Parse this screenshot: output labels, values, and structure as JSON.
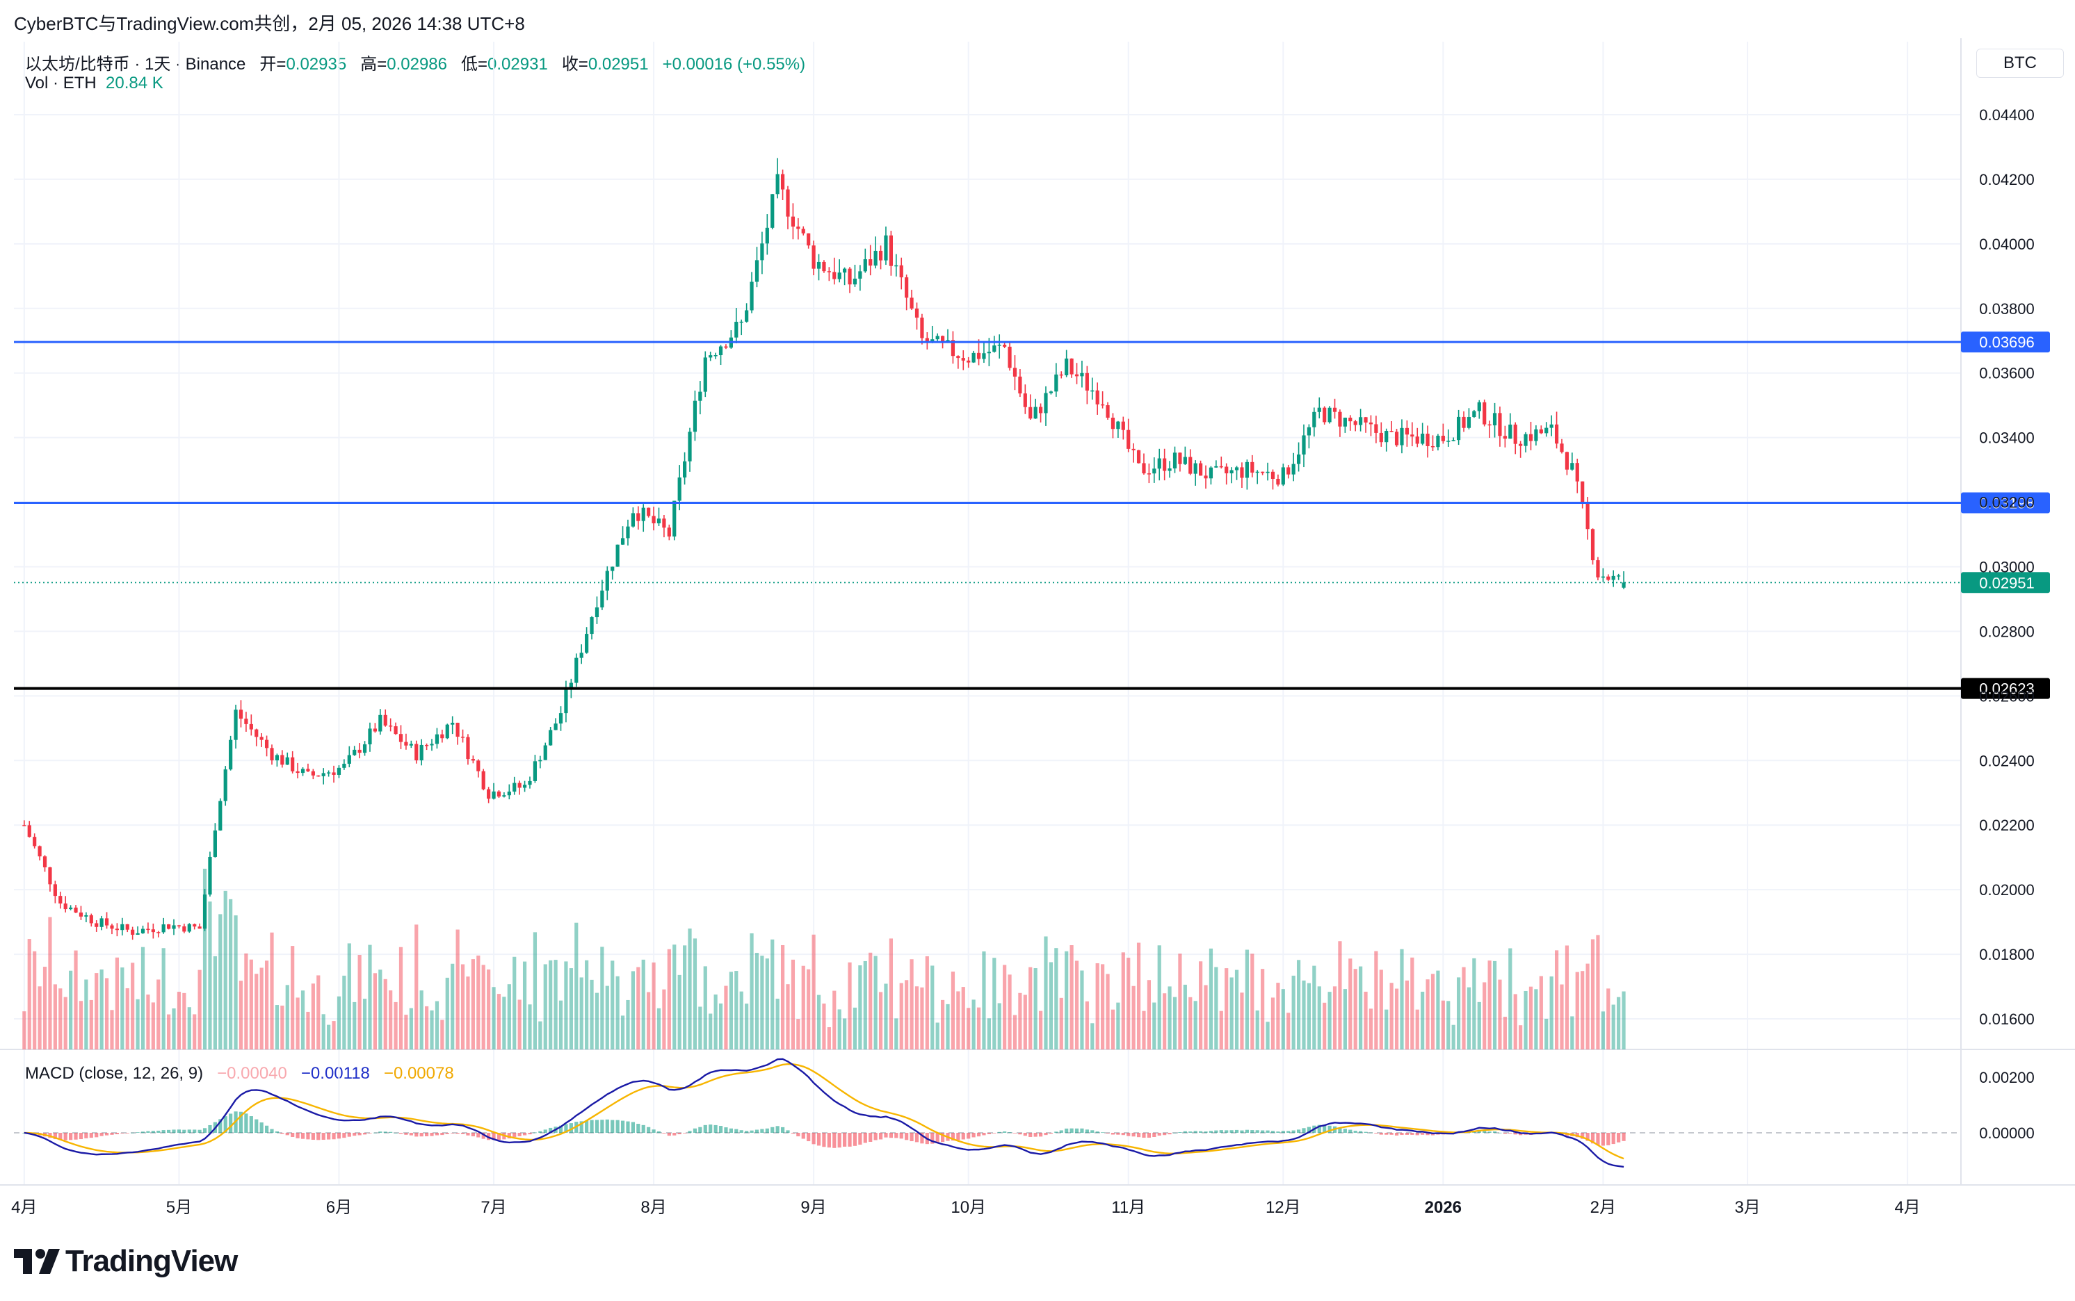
{
  "header": {
    "title": "CyberBTC与TradingView.com共创，2月 05, 2026 14:38 UTC+8"
  },
  "legend": {
    "symbol": "以太坊/比特币 · 1天 · Binance",
    "open_label": "开=",
    "open": "0.02935",
    "high_label": "高=",
    "high": "0.02986",
    "low_label": "低=",
    "low": "0.02931",
    "close_label": "收=",
    "close": "0.02951",
    "change": "+0.00016 (+0.55%)",
    "vol_label": "Vol · ETH",
    "vol": "20.84 K"
  },
  "macd_legend": {
    "label": "MACD (close, 12, 26, 9)",
    "hist": "−0.00040",
    "macd": "−0.00118",
    "signal": "−0.00078"
  },
  "currency_button": "BTC",
  "logo_text": "TradingView",
  "colors": {
    "up": "#089981",
    "down": "#f23645",
    "hline": "#2962ff",
    "support": "#000000",
    "macd": "#2962ff",
    "signal": "#f7b500"
  },
  "chart_data": {
    "type": "candlestick",
    "symbol": "ETH/BTC",
    "interval": "1D",
    "y_ticks": [
      "0.04400",
      "0.04200",
      "0.04000",
      "0.03800",
      "0.03600",
      "0.03400",
      "0.03200",
      "0.03000",
      "0.02800",
      "0.02600",
      "0.02400",
      "0.02200",
      "0.02000",
      "0.01800",
      "0.01600"
    ],
    "ylim": [
      0.0151,
      0.045
    ],
    "x_ticks": [
      "4月",
      "5月",
      "6月",
      "7月",
      "8月",
      "9月",
      "10月",
      "11月",
      "12月",
      "2026",
      "2月",
      "3月",
      "4月"
    ],
    "horizontal_lines": [
      {
        "value": 0.03696,
        "label": "0.03696",
        "color": "#2962ff"
      },
      {
        "value": 0.03198,
        "label": "0.03198",
        "color": "#2962ff"
      },
      {
        "value": 0.02623,
        "label": "0.02623",
        "color": "#000000"
      }
    ],
    "last_price": {
      "value": 0.02951,
      "label": "0.02951"
    },
    "close_series": [
      [
        "2025-04-01",
        0.022
      ],
      [
        "2025-04-08",
        0.0196
      ],
      [
        "2025-04-15",
        0.019
      ],
      [
        "2025-04-22",
        0.0187
      ],
      [
        "2025-04-29",
        0.0189
      ],
      [
        "2025-05-05",
        0.0188
      ],
      [
        "2025-05-08",
        0.022
      ],
      [
        "2025-05-12",
        0.0255
      ],
      [
        "2025-05-19",
        0.0242
      ],
      [
        "2025-05-26",
        0.0235
      ],
      [
        "2025-06-02",
        0.0238
      ],
      [
        "2025-06-09",
        0.0252
      ],
      [
        "2025-06-16",
        0.0242
      ],
      [
        "2025-06-23",
        0.0252
      ],
      [
        "2025-06-30",
        0.023
      ],
      [
        "2025-07-07",
        0.0232
      ],
      [
        "2025-07-14",
        0.0255
      ],
      [
        "2025-07-21",
        0.029
      ],
      [
        "2025-07-28",
        0.0318
      ],
      [
        "2025-08-04",
        0.031
      ],
      [
        "2025-08-11",
        0.0365
      ],
      [
        "2025-08-18",
        0.0375
      ],
      [
        "2025-08-25",
        0.0418
      ],
      [
        "2025-09-01",
        0.0395
      ],
      [
        "2025-09-08",
        0.0388
      ],
      [
        "2025-09-15",
        0.04
      ],
      [
        "2025-09-22",
        0.037
      ],
      [
        "2025-10-01",
        0.0365
      ],
      [
        "2025-10-08",
        0.0368
      ],
      [
        "2025-10-13",
        0.0345
      ],
      [
        "2025-10-20",
        0.0362
      ],
      [
        "2025-10-27",
        0.0352
      ],
      [
        "2025-11-03",
        0.033
      ],
      [
        "2025-11-10",
        0.0333
      ],
      [
        "2025-11-17",
        0.0328
      ],
      [
        "2025-11-24",
        0.033
      ],
      [
        "2025-12-01",
        0.0328
      ],
      [
        "2025-12-08",
        0.0348
      ],
      [
        "2025-12-15",
        0.0344
      ],
      [
        "2025-12-22",
        0.034
      ],
      [
        "2026-01-01",
        0.034
      ],
      [
        "2026-01-08",
        0.0348
      ],
      [
        "2026-01-15",
        0.034
      ],
      [
        "2026-01-22",
        0.0342
      ],
      [
        "2026-01-26",
        0.033
      ],
      [
        "2026-01-31",
        0.0298
      ],
      [
        "2026-02-05",
        0.02951
      ]
    ],
    "volume": {
      "unit": "ETH",
      "last": "20.84 K"
    },
    "macd": {
      "params": "close, 12, 26, 9",
      "y_ticks": [
        "0.00200",
        "0.00000"
      ],
      "last": {
        "histogram": -0.0004,
        "macd": -0.00118,
        "signal": -0.00078
      }
    },
    "grid": true,
    "legend_position": "top-left"
  }
}
